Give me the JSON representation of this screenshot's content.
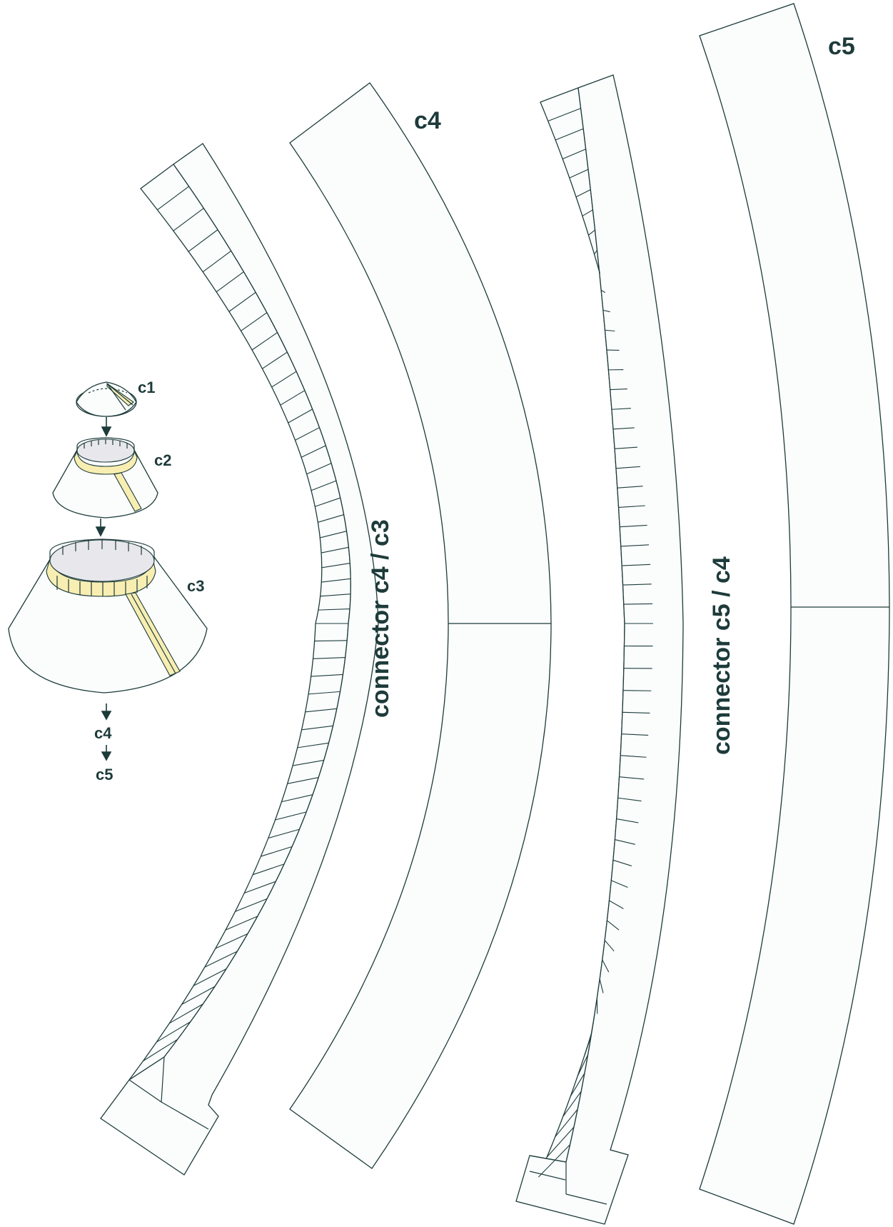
{
  "labels": {
    "c4_title": "c4",
    "c5_title": "c5",
    "connector_c4_c3": "connector  c4 / c3",
    "connector_c5_c4": "connector  c5 / c4"
  },
  "assembly": {
    "c1": "c1",
    "c2": "c2",
    "c3": "c3",
    "c4": "c4",
    "c5": "c5"
  },
  "colors": {
    "ink": "#1d3b3a",
    "paper": "#fbfdfd",
    "glue_band": "#f8eeb2",
    "inner_opening": "#e7e7ec"
  }
}
